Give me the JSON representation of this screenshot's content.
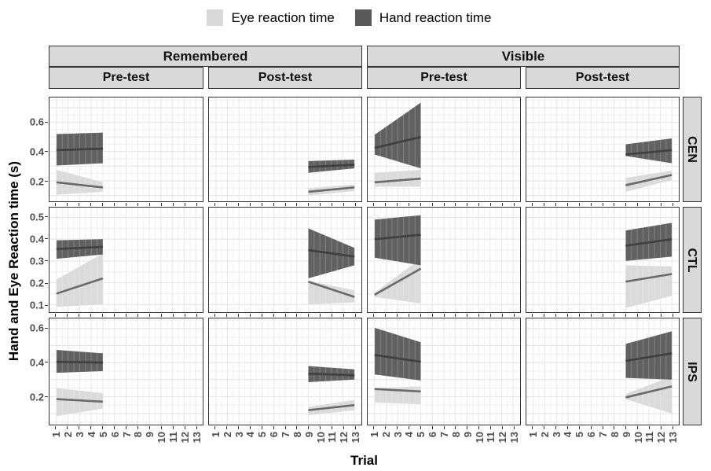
{
  "chart_data": {
    "type": "area",
    "description": "Faceted ribbon-and-line plot of eye and hand reaction times across trials. Columns: Remembered/Visible x Pre-test/Post-test. Rows: CEN, CTL, IPS. Pre-test fits span trials 1-5, post-test fits span trials 9-13; shaded ribbons are confidence bands around linear fit lines.",
    "xlabel": "Trial",
    "ylabel": "Hand and Eye Reaction time (s)",
    "legend_position": "top",
    "legend": [
      {
        "label": "Eye reaction time",
        "color": "#d9d9d9"
      },
      {
        "label": "Hand reaction time",
        "color": "#595959"
      }
    ],
    "x_ticks": [
      1,
      2,
      3,
      4,
      5,
      6,
      7,
      8,
      9,
      10,
      11,
      12,
      13
    ],
    "xlim": [
      0.4,
      13.6
    ],
    "facets": {
      "col_groups": [
        "Remembered",
        "Visible"
      ],
      "col_subs": [
        "Pre-test",
        "Post-test"
      ],
      "row_labels": [
        "CEN",
        "CTL",
        "IPS"
      ]
    },
    "rows": [
      {
        "label": "CEN",
        "ylim": [
          0.06,
          0.77
        ],
        "yticks": [
          0.2,
          0.4,
          0.6
        ]
      },
      {
        "label": "CTL",
        "ylim": [
          0.065,
          0.545
        ],
        "yticks": [
          0.1,
          0.2,
          0.3,
          0.4,
          0.5
        ]
      },
      {
        "label": "IPS",
        "ylim": [
          0.035,
          0.66
        ],
        "yticks": [
          0.2,
          0.4,
          0.6
        ]
      }
    ],
    "colors": {
      "eye_ribbon": "#d9d9d9",
      "eye_line": "#6a6a6a",
      "hand_ribbon": "#595959",
      "hand_line": "#3f3f3f",
      "strip_bg": "#d9d9d9",
      "grid_major": "#e2e2e2",
      "grid_minor": "#efefef",
      "tick_label": "#4d4d4d",
      "panel_border": "#333333"
    },
    "panels": [
      {
        "row": "CEN",
        "group": "Remembered",
        "phase": "Pre-test",
        "trials": [
          1,
          5
        ],
        "eye": {
          "line": [
            0.19,
            0.155
          ],
          "lower": [
            0.105,
            0.125
          ],
          "upper": [
            0.275,
            0.19
          ]
        },
        "hand": {
          "line": [
            0.41,
            0.42
          ],
          "lower": [
            0.305,
            0.32
          ],
          "upper": [
            0.52,
            0.53
          ]
        }
      },
      {
        "row": "CEN",
        "group": "Remembered",
        "phase": "Post-test",
        "trials": [
          9,
          13
        ],
        "eye": {
          "line": [
            0.125,
            0.155
          ],
          "lower": [
            0.1,
            0.13
          ],
          "upper": [
            0.15,
            0.175
          ]
        },
        "hand": {
          "line": [
            0.295,
            0.31
          ],
          "lower": [
            0.255,
            0.285
          ],
          "upper": [
            0.335,
            0.345
          ]
        }
      },
      {
        "row": "CEN",
        "group": "Visible",
        "phase": "Pre-test",
        "trials": [
          1,
          5
        ],
        "eye": {
          "line": [
            0.19,
            0.215
          ],
          "lower": [
            0.16,
            0.16
          ],
          "upper": [
            0.255,
            0.275
          ]
        },
        "hand": {
          "line": [
            0.425,
            0.5
          ],
          "lower": [
            0.38,
            0.285
          ],
          "upper": [
            0.515,
            0.735
          ]
        }
      },
      {
        "row": "CEN",
        "group": "Visible",
        "phase": "Post-test",
        "trials": [
          9,
          13
        ],
        "eye": {
          "line": [
            0.17,
            0.24
          ],
          "lower": [
            0.125,
            0.205
          ],
          "upper": [
            0.22,
            0.27
          ]
        },
        "hand": {
          "line": [
            0.38,
            0.41
          ],
          "lower": [
            0.37,
            0.32
          ],
          "upper": [
            0.45,
            0.49
          ]
        }
      },
      {
        "row": "CTL",
        "group": "Remembered",
        "phase": "Pre-test",
        "trials": [
          1,
          5
        ],
        "eye": {
          "line": [
            0.15,
            0.22
          ],
          "lower": [
            0.09,
            0.1
          ],
          "upper": [
            0.215,
            0.335
          ]
        },
        "hand": {
          "line": [
            0.355,
            0.365
          ],
          "lower": [
            0.31,
            0.33
          ],
          "upper": [
            0.395,
            0.4
          ]
        }
      },
      {
        "row": "CTL",
        "group": "Remembered",
        "phase": "Post-test",
        "trials": [
          9,
          13
        ],
        "eye": {
          "line": [
            0.205,
            0.135
          ],
          "lower": [
            0.1,
            0.11
          ],
          "upper": [
            0.21,
            0.165
          ]
        },
        "hand": {
          "line": [
            0.35,
            0.32
          ],
          "lower": [
            0.22,
            0.28
          ],
          "upper": [
            0.45,
            0.36
          ]
        }
      },
      {
        "row": "CTL",
        "group": "Visible",
        "phase": "Pre-test",
        "trials": [
          1,
          5
        ],
        "eye": {
          "line": [
            0.145,
            0.265
          ],
          "lower": [
            0.135,
            0.105
          ],
          "upper": [
            0.155,
            0.31
          ]
        },
        "hand": {
          "line": [
            0.4,
            0.42
          ],
          "lower": [
            0.315,
            0.28
          ],
          "upper": [
            0.49,
            0.51
          ]
        }
      },
      {
        "row": "CTL",
        "group": "Visible",
        "phase": "Post-test",
        "trials": [
          9,
          13
        ],
        "eye": {
          "line": [
            0.205,
            0.24
          ],
          "lower": [
            0.085,
            0.14
          ],
          "upper": [
            0.28,
            0.275
          ]
        },
        "hand": {
          "line": [
            0.37,
            0.4
          ],
          "lower": [
            0.3,
            0.32
          ],
          "upper": [
            0.44,
            0.475
          ]
        }
      },
      {
        "row": "IPS",
        "group": "Remembered",
        "phase": "Pre-test",
        "trials": [
          1,
          5
        ],
        "eye": {
          "line": [
            0.185,
            0.17
          ],
          "lower": [
            0.085,
            0.13
          ],
          "upper": [
            0.25,
            0.22
          ]
        },
        "hand": {
          "line": [
            0.405,
            0.4
          ],
          "lower": [
            0.34,
            0.35
          ],
          "upper": [
            0.475,
            0.455
          ]
        }
      },
      {
        "row": "IPS",
        "group": "Remembered",
        "phase": "Post-test",
        "trials": [
          9,
          13
        ],
        "eye": {
          "line": [
            0.12,
            0.15
          ],
          "lower": [
            0.09,
            0.12
          ],
          "upper": [
            0.14,
            0.18
          ]
        },
        "hand": {
          "line": [
            0.335,
            0.325
          ],
          "lower": [
            0.285,
            0.3
          ],
          "upper": [
            0.38,
            0.36
          ]
        }
      },
      {
        "row": "IPS",
        "group": "Visible",
        "phase": "Pre-test",
        "trials": [
          1,
          5
        ],
        "eye": {
          "line": [
            0.245,
            0.23
          ],
          "lower": [
            0.165,
            0.155
          ],
          "upper": [
            0.25,
            0.26
          ]
        },
        "hand": {
          "line": [
            0.445,
            0.405
          ],
          "lower": [
            0.33,
            0.295
          ],
          "upper": [
            0.605,
            0.52
          ]
        }
      },
      {
        "row": "IPS",
        "group": "Visible",
        "phase": "Post-test",
        "trials": [
          9,
          13
        ],
        "eye": {
          "line": [
            0.195,
            0.26
          ],
          "lower": [
            0.185,
            0.1
          ],
          "upper": [
            0.215,
            0.32
          ]
        },
        "hand": {
          "line": [
            0.41,
            0.455
          ],
          "lower": [
            0.31,
            0.3
          ],
          "upper": [
            0.51,
            0.585
          ]
        }
      }
    ]
  }
}
